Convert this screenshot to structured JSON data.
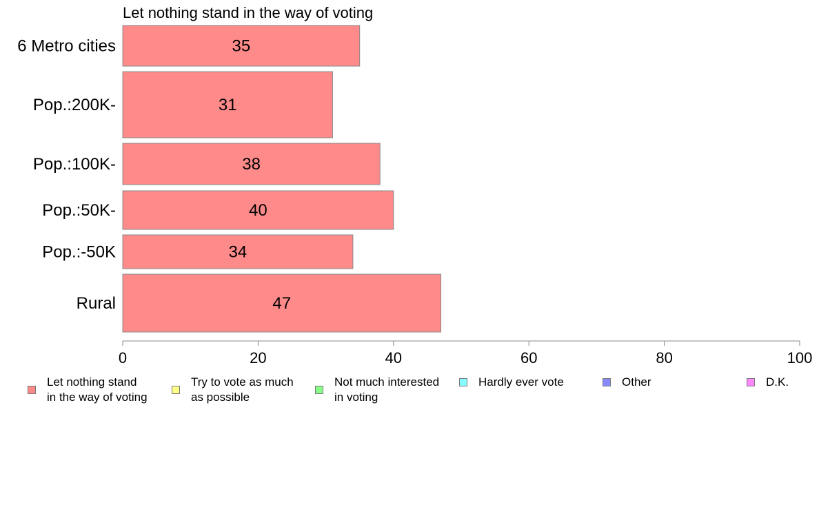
{
  "chart_data": {
    "type": "bar",
    "orientation": "horizontal",
    "title": "Let nothing stand in the way of voting",
    "categories": [
      "6 Metro cities",
      "Pop.:200K-",
      "Pop.:100K-",
      "Pop.:50K-",
      "Pop.:-50K",
      "Rural"
    ],
    "series": [
      {
        "name": "Let nothing stand in the way of voting",
        "values": [
          35,
          31,
          38,
          40,
          34,
          47
        ],
        "color": "#ff8a8a"
      }
    ],
    "xlim": [
      0,
      100
    ],
    "xticks": [
      "0",
      "20",
      "40",
      "60",
      "80",
      "100"
    ],
    "grid": false,
    "legend_position": "bottom"
  },
  "legend": [
    {
      "label": "Let nothing stand\nin the way of voting",
      "color": "#ff8a8a"
    },
    {
      "label": "Try to vote as much\nas possible",
      "color": "#ffff88"
    },
    {
      "label": "Not much interested\nin voting",
      "color": "#88ff88"
    },
    {
      "label": "Hardly ever vote",
      "color": "#88ffff"
    },
    {
      "label": "Other",
      "color": "#8888ff"
    },
    {
      "label": "D.K.",
      "color": "#ff88ff"
    }
  ]
}
